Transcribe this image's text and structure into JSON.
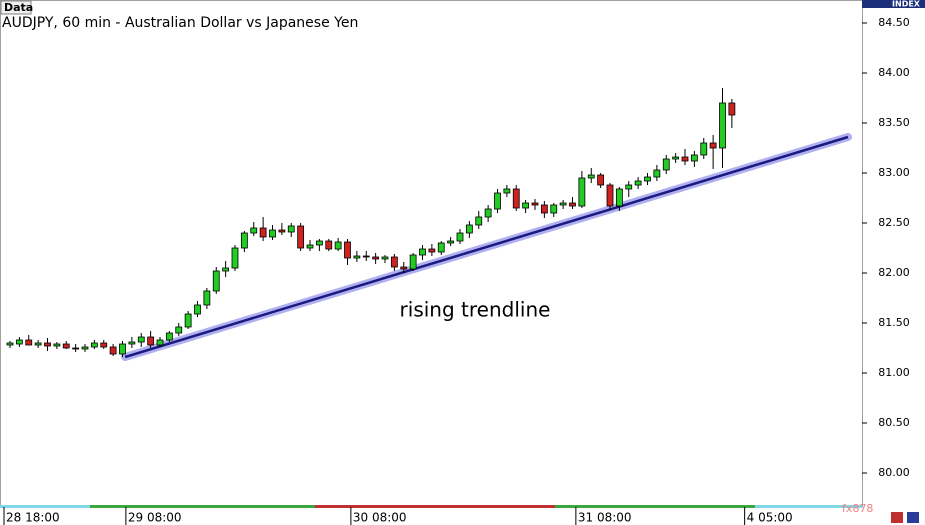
{
  "chart_data": {
    "type": "candlestick",
    "label": "Data",
    "title": "AUDJPY, 60 min - Australian Dollar vs Japanese Yen",
    "axis_title": "INDEX",
    "annotation": "rising trendline",
    "watermark": "fx878",
    "categories": [
      "28 18:00",
      null,
      null,
      null,
      null,
      null,
      null,
      null,
      null,
      null,
      null,
      null,
      null,
      "29 08:00",
      null,
      null,
      null,
      null,
      null,
      null,
      null,
      null,
      null,
      null,
      null,
      null,
      null,
      null,
      null,
      null,
      null,
      null,
      null,
      null,
      null,
      null,
      null,
      "30 08:00",
      null,
      null,
      null,
      null,
      null,
      null,
      null,
      null,
      null,
      null,
      null,
      null,
      null,
      null,
      null,
      null,
      null,
      null,
      null,
      null,
      null,
      null,
      null,
      "31 08:00",
      null,
      null,
      null,
      null,
      null,
      null,
      null,
      null,
      null,
      null,
      null,
      null,
      null,
      null,
      null,
      null,
      null,
      "4 05:00"
    ],
    "open": [
      81.28,
      81.29,
      81.33,
      81.28,
      81.3,
      81.27,
      81.29,
      81.25,
      81.24,
      81.26,
      81.3,
      81.26,
      81.19,
      81.29,
      81.31,
      81.36,
      81.28,
      81.33,
      81.4,
      81.46,
      81.59,
      81.68,
      81.82,
      82.02,
      82.05,
      82.25,
      82.4,
      82.45,
      82.36,
      82.43,
      82.41,
      82.47,
      82.25,
      82.28,
      82.32,
      82.24,
      82.31,
      82.15,
      82.17,
      82.16,
      82.14,
      82.16,
      82.06,
      82.04,
      82.18,
      82.24,
      82.21,
      82.3,
      82.32,
      82.4,
      82.48,
      82.56,
      82.64,
      82.8,
      82.84,
      82.65,
      82.7,
      82.68,
      82.6,
      82.68,
      82.7,
      82.67,
      82.95,
      82.98,
      82.88,
      82.67,
      82.84,
      82.88,
      82.92,
      82.96,
      83.03,
      83.14,
      83.16,
      83.12,
      83.18,
      83.3,
      83.25,
      83.7,
      null,
      null
    ],
    "high": [
      81.32,
      81.36,
      81.38,
      81.33,
      81.35,
      81.31,
      81.32,
      81.29,
      81.29,
      81.33,
      81.33,
      81.29,
      81.32,
      81.36,
      81.4,
      81.42,
      81.36,
      81.42,
      81.5,
      81.62,
      81.72,
      81.85,
      82.06,
      82.12,
      82.28,
      82.42,
      82.51,
      82.56,
      82.48,
      82.5,
      82.5,
      82.5,
      82.33,
      82.34,
      82.34,
      82.35,
      82.34,
      82.22,
      82.22,
      82.2,
      82.18,
      82.19,
      82.11,
      82.2,
      82.28,
      82.29,
      82.32,
      82.36,
      82.44,
      82.52,
      82.62,
      82.68,
      82.84,
      82.88,
      82.88,
      82.73,
      82.74,
      82.72,
      82.7,
      82.73,
      82.76,
      83.02,
      83.05,
      83.0,
      82.9,
      82.86,
      82.92,
      82.96,
      83.0,
      83.08,
      83.18,
      83.2,
      83.24,
      83.22,
      83.35,
      83.38,
      83.85,
      83.74,
      null,
      null
    ],
    "low": [
      81.25,
      81.26,
      81.28,
      81.25,
      81.22,
      81.24,
      81.24,
      81.21,
      81.21,
      81.24,
      81.24,
      81.17,
      81.16,
      81.25,
      81.26,
      81.25,
      81.26,
      81.31,
      81.37,
      81.44,
      81.56,
      81.64,
      81.79,
      81.96,
      82.02,
      82.21,
      82.37,
      82.32,
      82.33,
      82.38,
      82.36,
      82.22,
      82.22,
      82.22,
      82.22,
      82.22,
      82.08,
      82.11,
      82.12,
      82.09,
      82.1,
      82.02,
      82.0,
      82.02,
      82.13,
      82.17,
      82.18,
      82.27,
      82.29,
      82.35,
      82.44,
      82.51,
      82.6,
      82.76,
      82.62,
      82.6,
      82.63,
      82.55,
      82.56,
      82.64,
      82.64,
      82.65,
      82.9,
      82.85,
      82.63,
      82.62,
      82.76,
      82.84,
      82.88,
      82.92,
      82.99,
      83.1,
      83.08,
      83.06,
      83.14,
      83.04,
      83.05,
      83.45,
      null,
      null
    ],
    "close": [
      81.3,
      81.33,
      81.28,
      81.3,
      81.27,
      81.29,
      81.25,
      81.24,
      81.26,
      81.3,
      81.26,
      81.19,
      81.29,
      81.31,
      81.36,
      81.28,
      81.33,
      81.4,
      81.46,
      81.59,
      81.68,
      81.82,
      82.02,
      82.05,
      82.25,
      82.4,
      82.45,
      82.36,
      82.43,
      82.41,
      82.47,
      82.25,
      82.28,
      82.32,
      82.24,
      82.31,
      82.15,
      82.17,
      82.16,
      82.14,
      82.16,
      82.06,
      82.04,
      82.18,
      82.24,
      82.21,
      82.3,
      82.32,
      82.4,
      82.48,
      82.56,
      82.64,
      82.8,
      82.84,
      82.65,
      82.7,
      82.68,
      82.6,
      82.68,
      82.7,
      82.67,
      82.95,
      82.98,
      82.88,
      82.67,
      82.84,
      82.88,
      82.92,
      82.96,
      83.03,
      83.14,
      83.16,
      83.12,
      83.18,
      83.3,
      83.25,
      83.7,
      83.58,
      null,
      null
    ],
    "up_color": "#22cc22",
    "down_color": "#cc2222",
    "ylim": [
      79.68,
      84.73
    ],
    "yticks": [
      {
        "value": 80,
        "label": "80.00"
      },
      {
        "value": 80.5,
        "label": "80.50"
      },
      {
        "value": 81,
        "label": "81.00"
      },
      {
        "value": 81.5,
        "label": "81.50"
      },
      {
        "value": 82,
        "label": "82.00"
      },
      {
        "value": 82.5,
        "label": "82.50"
      },
      {
        "value": 83,
        "label": "83.00"
      },
      {
        "value": 83.5,
        "label": "83.50"
      },
      {
        "value": 84,
        "label": "84.00"
      },
      {
        "value": 84.5,
        "label": "84.50"
      }
    ]
  }
}
